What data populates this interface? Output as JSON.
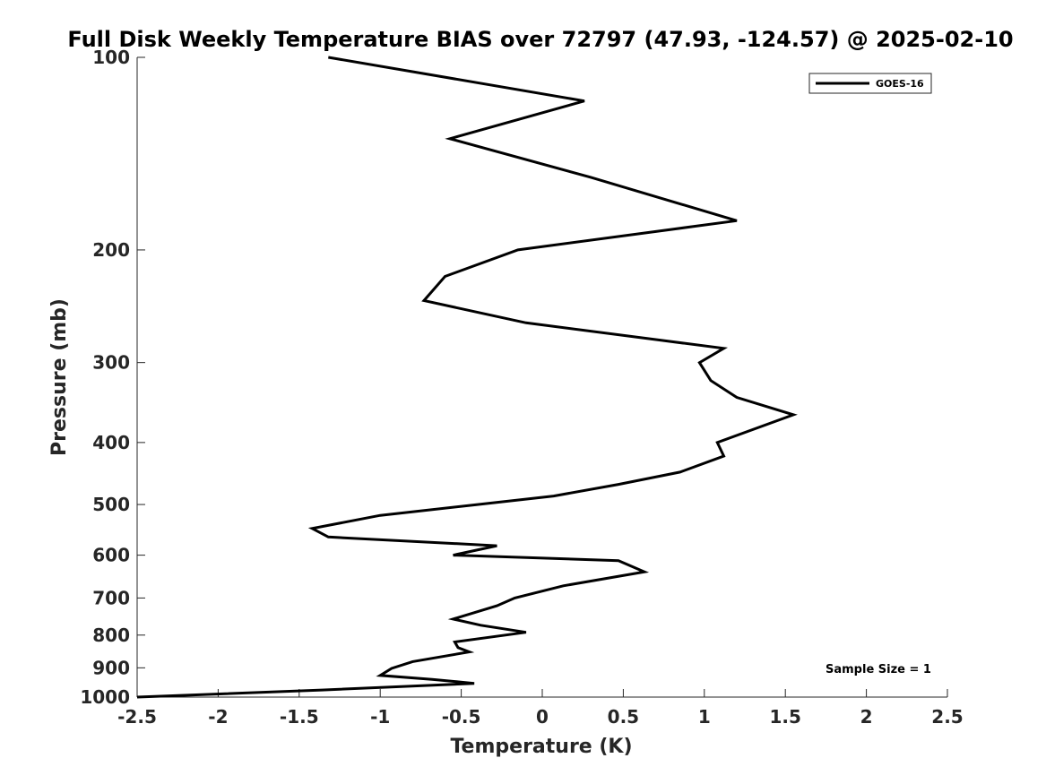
{
  "chart_data": {
    "type": "line",
    "title": "Full Disk Weekly Temperature BIAS over 72797 (47.93, -124.57) @ 2025-02-10",
    "xlabel": "Temperature (K)",
    "ylabel": "Pressure (mb)",
    "xlim": [
      -2.5,
      2.5
    ],
    "ylim": [
      100,
      1000
    ],
    "y_scale": "log",
    "y_reversed": true,
    "grid": false,
    "legend_position": "top-right",
    "x_ticks": [
      -2.5,
      -2,
      -1.5,
      -1,
      -0.5,
      0,
      0.5,
      1,
      1.5,
      2,
      2.5
    ],
    "x_tick_labels": [
      "-2.5",
      "-2",
      "-1.5",
      "-1",
      "-0.5",
      "0",
      "0.5",
      "1",
      "1.5",
      "2",
      "2.5"
    ],
    "y_ticks": [
      100,
      200,
      300,
      400,
      500,
      600,
      700,
      800,
      900,
      1000
    ],
    "y_tick_labels": [
      "100",
      "200",
      "300",
      "400",
      "500",
      "600",
      "700",
      "800",
      "900",
      "1000"
    ],
    "series": [
      {
        "name": "GOES-16",
        "color": "#000000",
        "points": [
          {
            "x": -1.32,
            "y": 100
          },
          {
            "x": 0.26,
            "y": 117
          },
          {
            "x": -0.57,
            "y": 134
          },
          {
            "x": 0.3,
            "y": 154
          },
          {
            "x": 1.2,
            "y": 180
          },
          {
            "x": -0.15,
            "y": 200
          },
          {
            "x": -0.6,
            "y": 220
          },
          {
            "x": -0.73,
            "y": 240
          },
          {
            "x": -0.1,
            "y": 260
          },
          {
            "x": 1.12,
            "y": 285
          },
          {
            "x": 0.97,
            "y": 300
          },
          {
            "x": 1.04,
            "y": 320
          },
          {
            "x": 1.2,
            "y": 340
          },
          {
            "x": 1.55,
            "y": 362
          },
          {
            "x": 1.08,
            "y": 400
          },
          {
            "x": 1.12,
            "y": 420
          },
          {
            "x": 0.85,
            "y": 445
          },
          {
            "x": 0.47,
            "y": 465
          },
          {
            "x": 0.07,
            "y": 485
          },
          {
            "x": -0.4,
            "y": 500
          },
          {
            "x": -1.0,
            "y": 520
          },
          {
            "x": -1.42,
            "y": 545
          },
          {
            "x": -1.32,
            "y": 562
          },
          {
            "x": -0.28,
            "y": 580
          },
          {
            "x": -0.55,
            "y": 600
          },
          {
            "x": 0.47,
            "y": 612
          },
          {
            "x": 0.63,
            "y": 637
          },
          {
            "x": 0.13,
            "y": 670
          },
          {
            "x": -0.17,
            "y": 700
          },
          {
            "x": -0.28,
            "y": 720
          },
          {
            "x": -0.55,
            "y": 755
          },
          {
            "x": -0.38,
            "y": 772
          },
          {
            "x": -0.1,
            "y": 792
          },
          {
            "x": -0.54,
            "y": 820
          },
          {
            "x": -0.52,
            "y": 837
          },
          {
            "x": -0.45,
            "y": 850
          },
          {
            "x": -0.8,
            "y": 880
          },
          {
            "x": -0.93,
            "y": 902
          },
          {
            "x": -1.0,
            "y": 925
          },
          {
            "x": -0.68,
            "y": 938
          },
          {
            "x": -0.42,
            "y": 952
          },
          {
            "x": -1.36,
            "y": 975
          },
          {
            "x": -2.5,
            "y": 1000
          }
        ]
      }
    ],
    "annotations": [
      "Sample Size = 1"
    ]
  }
}
